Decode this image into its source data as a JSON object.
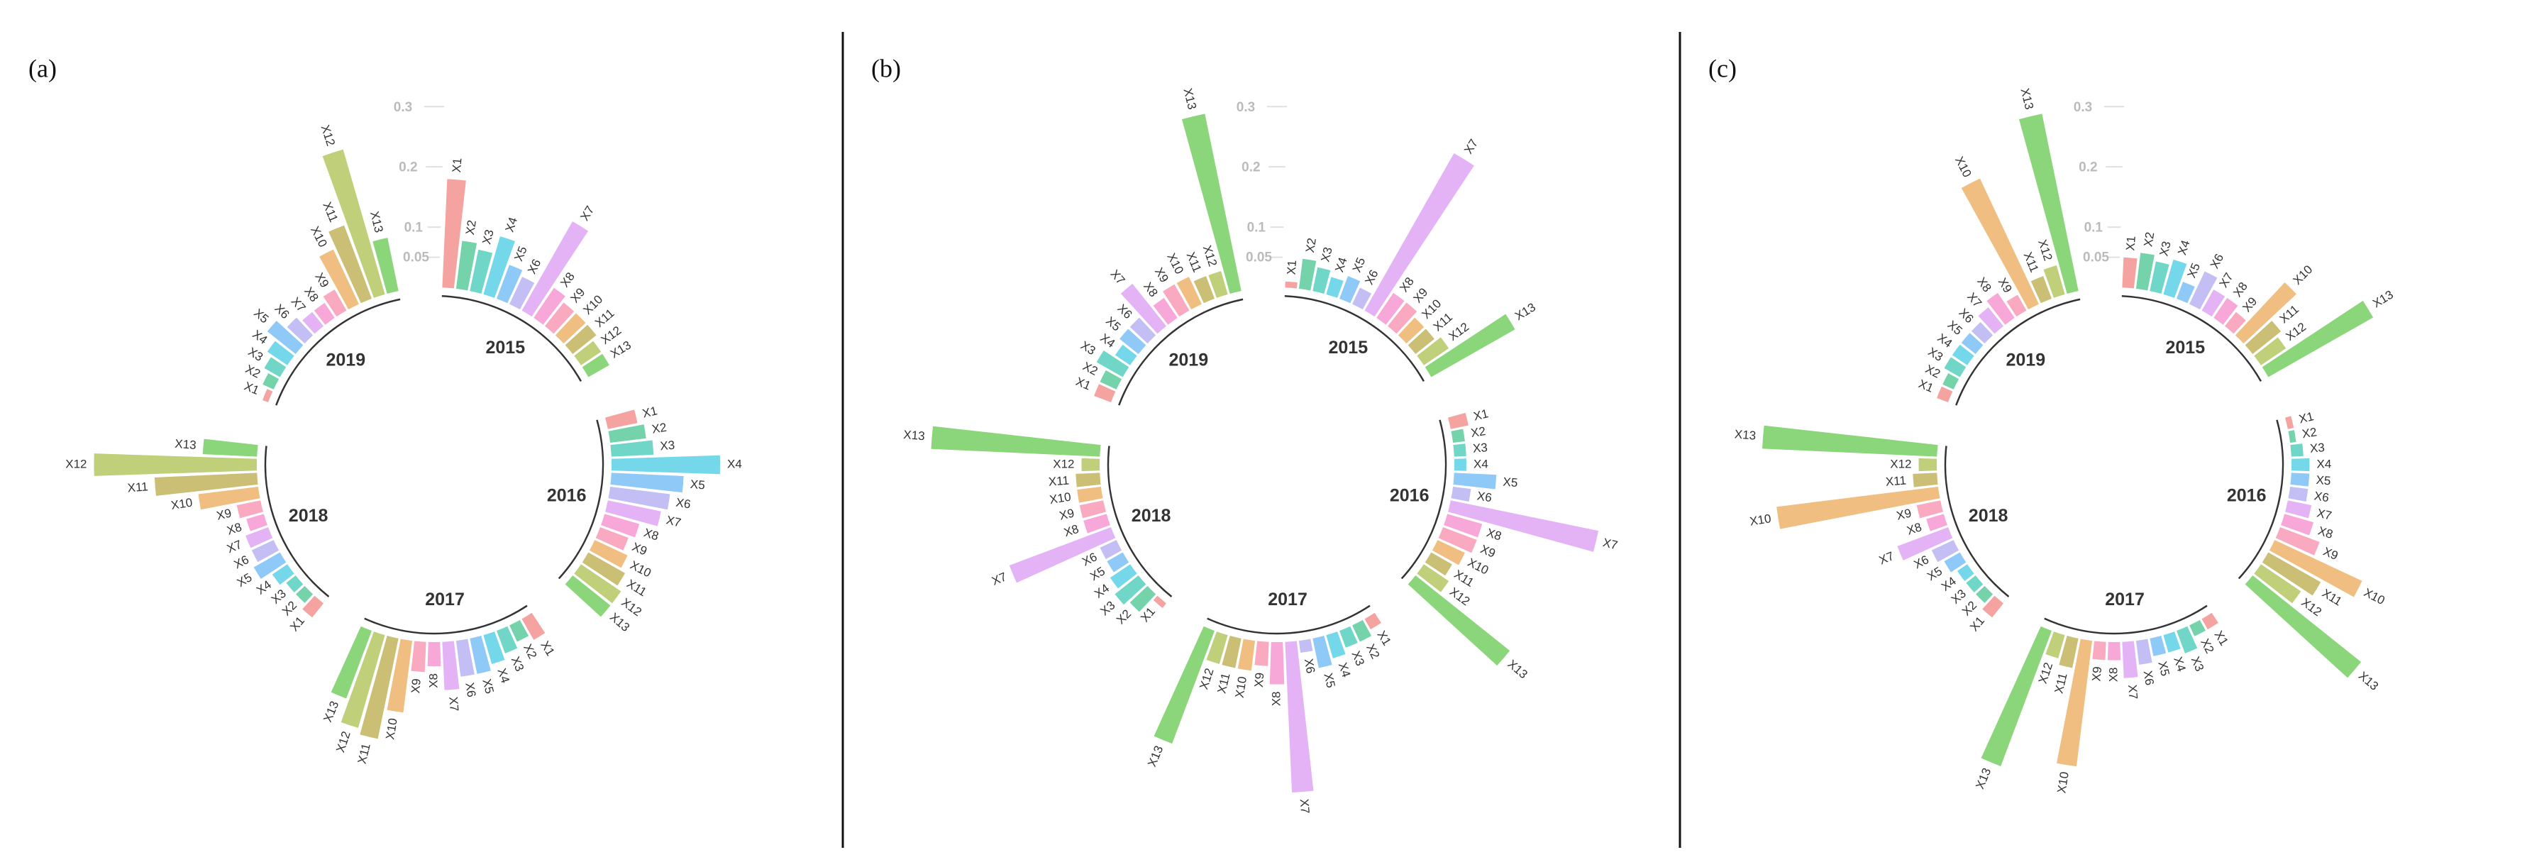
{
  "chart_data": [
    {
      "type": "bar",
      "polar": true,
      "panel_label": "(a)",
      "categories": [
        "2015",
        "2016",
        "2017",
        "2018",
        "2019"
      ],
      "ylim": [
        0,
        0.3
      ],
      "yticks": [
        0.05,
        0.1,
        0.2,
        0.3
      ],
      "series": [
        {
          "name": "X1",
          "color": "#f4a3a0",
          "values": [
            0.18,
            0.05,
            0.04,
            0.03,
            0.01
          ]
        },
        {
          "name": "X2",
          "color": "#74d3aa",
          "values": [
            0.08,
            0.06,
            0.03,
            0.02,
            0.02
          ]
        },
        {
          "name": "X3",
          "color": "#6fd6c8",
          "values": [
            0.07,
            0.07,
            0.04,
            0.02,
            0.03
          ]
        },
        {
          "name": "X4",
          "color": "#75d7ea",
          "values": [
            0.1,
            0.18,
            0.05,
            0.03,
            0.04
          ]
        },
        {
          "name": "X5",
          "color": "#8ec9f7",
          "values": [
            0.06,
            0.12,
            0.06,
            0.05,
            0.06
          ]
        },
        {
          "name": "X6",
          "color": "#c3bff5",
          "values": [
            0.05,
            0.1,
            0.06,
            0.04,
            0.04
          ]
        },
        {
          "name": "X7",
          "color": "#e4b3f6",
          "values": [
            0.17,
            0.09,
            0.08,
            0.04,
            0.03
          ]
        },
        {
          "name": "X8",
          "color": "#f7a8d8",
          "values": [
            0.06,
            0.06,
            0.04,
            0.03,
            0.03
          ]
        },
        {
          "name": "X9",
          "color": "#f9a9c0",
          "values": [
            0.05,
            0.05,
            0.05,
            0.04,
            0.04
          ]
        },
        {
          "name": "X10",
          "color": "#efbe80",
          "values": [
            0.05,
            0.06,
            0.12,
            0.1,
            0.1
          ]
        },
        {
          "name": "X11",
          "color": "#cbbf76",
          "values": [
            0.05,
            0.07,
            0.17,
            0.17,
            0.13
          ]
        },
        {
          "name": "X12",
          "color": "#bfcf7a",
          "values": [
            0.04,
            0.08,
            0.16,
            0.27,
            0.25
          ]
        },
        {
          "name": "X13",
          "color": "#8bd67a",
          "values": [
            0.04,
            0.08,
            0.12,
            0.09,
            0.09
          ]
        }
      ]
    },
    {
      "type": "bar",
      "polar": true,
      "panel_label": "(b)",
      "categories": [
        "2015",
        "2016",
        "2017",
        "2018",
        "2019"
      ],
      "ylim": [
        0,
        0.3
      ],
      "yticks": [
        0.05,
        0.1,
        0.2,
        0.3
      ],
      "series": [
        {
          "name": "X1",
          "color": "#f4a3a0",
          "values": [
            0.01,
            0.03,
            0.02,
            0.01,
            0.03
          ]
        },
        {
          "name": "X2",
          "color": "#74d3aa",
          "values": [
            0.05,
            0.02,
            0.03,
            0.04,
            0.03
          ]
        },
        {
          "name": "X3",
          "color": "#6fd6c8",
          "values": [
            0.04,
            0.02,
            0.03,
            0.05,
            0.05
          ]
        },
        {
          "name": "X4",
          "color": "#75d7ea",
          "values": [
            0.03,
            0.02,
            0.04,
            0.04,
            0.03
          ]
        },
        {
          "name": "X5",
          "color": "#8ec9f7",
          "values": [
            0.04,
            0.07,
            0.05,
            0.03,
            0.04
          ]
        },
        {
          "name": "X6",
          "color": "#c3bff5",
          "values": [
            0.03,
            0.03,
            0.02,
            0.03,
            0.04
          ]
        },
        {
          "name": "X7",
          "color": "#e4b3f6",
          "values": [
            0.3,
            0.25,
            0.25,
            0.18,
            0.09
          ]
        },
        {
          "name": "X8",
          "color": "#f7a8d8",
          "values": [
            0.05,
            0.06,
            0.07,
            0.04,
            0.04
          ]
        },
        {
          "name": "X9",
          "color": "#f9a9c0",
          "values": [
            0.05,
            0.06,
            0.04,
            0.04,
            0.05
          ]
        },
        {
          "name": "X10",
          "color": "#efbe80",
          "values": [
            0.04,
            0.05,
            0.05,
            0.04,
            0.05
          ]
        },
        {
          "name": "X11",
          "color": "#cbbf76",
          "values": [
            0.04,
            0.04,
            0.05,
            0.04,
            0.04
          ]
        },
        {
          "name": "X12",
          "color": "#bfcf7a",
          "values": [
            0.05,
            0.05,
            0.05,
            0.03,
            0.04
          ]
        },
        {
          "name": "X13",
          "color": "#8bd67a",
          "values": [
            0.16,
            0.2,
            0.2,
            0.28,
            0.3
          ]
        }
      ]
    },
    {
      "type": "bar",
      "polar": true,
      "panel_label": "(c)",
      "categories": [
        "2015",
        "2016",
        "2017",
        "2018",
        "2019"
      ],
      "ylim": [
        0,
        0.3
      ],
      "yticks": [
        0.05,
        0.1,
        0.2,
        0.3
      ],
      "series": [
        {
          "name": "X1",
          "color": "#f4a3a0",
          "values": [
            0.05,
            0.01,
            0.02,
            0.03,
            0.02
          ]
        },
        {
          "name": "X2",
          "color": "#74d3aa",
          "values": [
            0.06,
            0.01,
            0.02,
            0.02,
            0.02
          ]
        },
        {
          "name": "X3",
          "color": "#6fd6c8",
          "values": [
            0.05,
            0.02,
            0.04,
            0.02,
            0.03
          ]
        },
        {
          "name": "X4",
          "color": "#75d7ea",
          "values": [
            0.06,
            0.03,
            0.03,
            0.02,
            0.03
          ]
        },
        {
          "name": "X5",
          "color": "#8ec9f7",
          "values": [
            0.03,
            0.03,
            0.03,
            0.03,
            0.03
          ]
        },
        {
          "name": "X6",
          "color": "#c3bff5",
          "values": [
            0.06,
            0.03,
            0.04,
            0.04,
            0.03
          ]
        },
        {
          "name": "X7",
          "color": "#e4b3f6",
          "values": [
            0.04,
            0.04,
            0.06,
            0.09,
            0.04
          ]
        },
        {
          "name": "X8",
          "color": "#f7a8d8",
          "values": [
            0.04,
            0.05,
            0.03,
            0.03,
            0.05
          ]
        },
        {
          "name": "X9",
          "color": "#f9a9c0",
          "values": [
            0.03,
            0.07,
            0.03,
            0.04,
            0.03
          ]
        },
        {
          "name": "X10",
          "color": "#efbe80",
          "values": [
            0.12,
            0.16,
            0.21,
            0.27,
            0.23
          ]
        },
        {
          "name": "X11",
          "color": "#cbbf76",
          "values": [
            0.06,
            0.1,
            0.05,
            0.04,
            0.04
          ]
        },
        {
          "name": "X12",
          "color": "#bfcf7a",
          "values": [
            0.05,
            0.08,
            0.04,
            0.03,
            0.05
          ]
        },
        {
          "name": "X13",
          "color": "#8bd67a",
          "values": [
            0.2,
            0.23,
            0.24,
            0.29,
            0.3
          ]
        }
      ]
    }
  ]
}
